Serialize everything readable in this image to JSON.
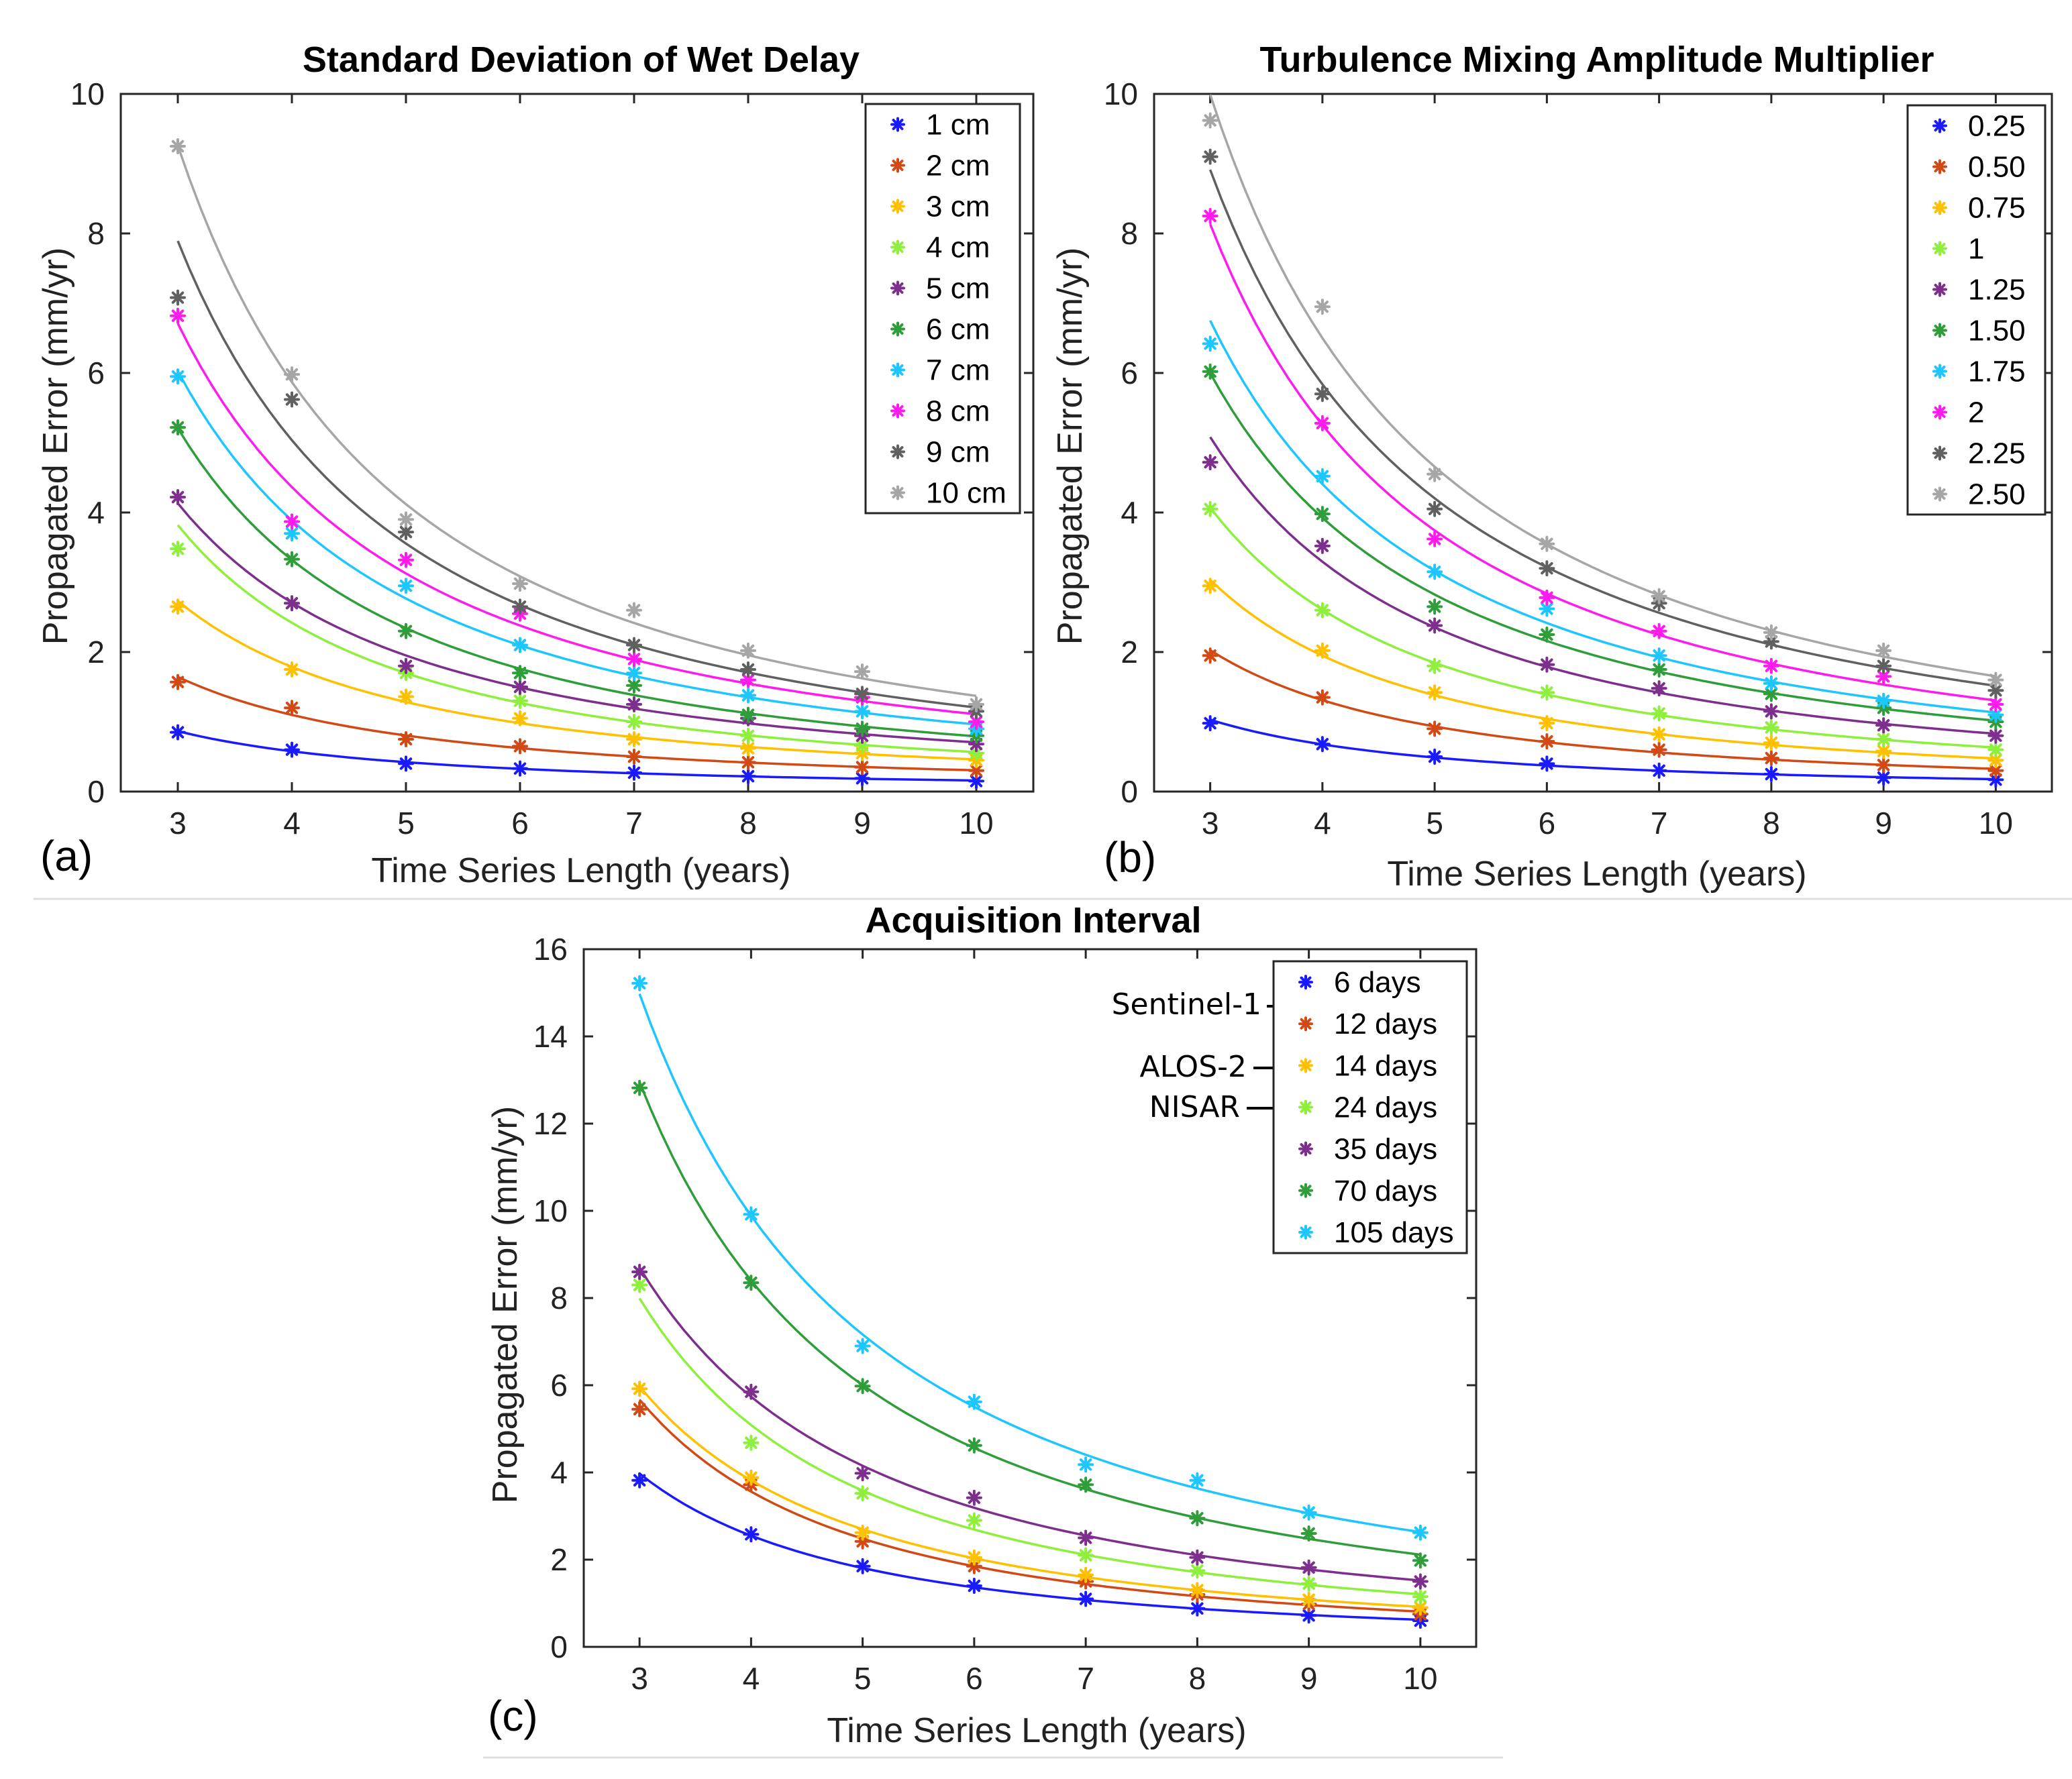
{
  "chart_data": [
    {
      "panel": "(a)",
      "type": "scatter",
      "title": "Standard Deviation of Wet Delay",
      "xlabel": "Time Series Length (years)",
      "ylabel": "Propagated Error (mm/yr)",
      "xlim": [
        2.5,
        10.5
      ],
      "ylim": [
        0,
        10
      ],
      "xticks": [
        "3",
        "4",
        "5",
        "6",
        "7",
        "8",
        "9",
        "10"
      ],
      "yticks": [
        "0",
        "2",
        "4",
        "6",
        "8",
        "10"
      ],
      "x": [
        3,
        4,
        5,
        6,
        7,
        8,
        9,
        10
      ],
      "legend_position": "top-right",
      "series": [
        {
          "name": "1 cm",
          "color": "#1a1aff",
          "values": [
            0.85,
            0.6,
            0.4,
            0.33,
            0.27,
            0.22,
            0.19,
            0.15
          ]
        },
        {
          "name": "2 cm",
          "color": "#d14a16",
          "values": [
            1.57,
            1.2,
            0.75,
            0.65,
            0.5,
            0.42,
            0.35,
            0.3
          ]
        },
        {
          "name": "3 cm",
          "color": "#ffc000",
          "values": [
            2.65,
            1.75,
            1.36,
            1.05,
            0.75,
            0.62,
            0.55,
            0.45
          ]
        },
        {
          "name": "4 cm",
          "color": "#8eef3c",
          "values": [
            3.48,
            2.7,
            1.7,
            1.3,
            1.0,
            0.8,
            0.66,
            0.55
          ]
        },
        {
          "name": "5 cm",
          "color": "#7e2f8e",
          "values": [
            4.22,
            2.7,
            1.8,
            1.5,
            1.25,
            1.05,
            0.8,
            0.68
          ]
        },
        {
          "name": "6 cm",
          "color": "#2e9d3a",
          "values": [
            5.22,
            3.33,
            2.3,
            1.7,
            1.52,
            1.1,
            0.9,
            0.8
          ]
        },
        {
          "name": "7 cm",
          "color": "#1ec6ff",
          "values": [
            5.95,
            3.7,
            2.95,
            2.1,
            1.7,
            1.38,
            1.15,
            0.9
          ]
        },
        {
          "name": "8 cm",
          "color": "#ff1aee",
          "values": [
            6.82,
            3.87,
            3.32,
            2.55,
            1.9,
            1.6,
            1.35,
            1.0
          ]
        },
        {
          "name": "9 cm",
          "color": "#606060",
          "values": [
            7.08,
            5.62,
            3.72,
            2.65,
            2.1,
            1.75,
            1.4,
            1.15
          ]
        },
        {
          "name": "10 cm",
          "color": "#a6a6a6",
          "values": [
            9.25,
            5.98,
            3.9,
            2.98,
            2.6,
            2.02,
            1.72,
            1.25
          ]
        }
      ]
    },
    {
      "panel": "(b)",
      "type": "scatter",
      "title": "Turbulence Mixing Amplitude Multiplier",
      "xlabel": "Time Series Length (years)",
      "ylabel": "Propagated Error (mm/yr)",
      "xlim": [
        2.5,
        10.5
      ],
      "ylim": [
        0,
        10
      ],
      "xticks": [
        "3",
        "4",
        "5",
        "6",
        "7",
        "8",
        "9",
        "10"
      ],
      "yticks": [
        "0",
        "2",
        "4",
        "6",
        "8",
        "10"
      ],
      "x": [
        3,
        4,
        5,
        6,
        7,
        8,
        9,
        10
      ],
      "legend_position": "top-right",
      "series": [
        {
          "name": "0.25",
          "color": "#1a1aff",
          "values": [
            0.98,
            0.68,
            0.5,
            0.4,
            0.3,
            0.25,
            0.2,
            0.17
          ]
        },
        {
          "name": "0.50",
          "color": "#d14a16",
          "values": [
            1.95,
            1.35,
            0.9,
            0.72,
            0.6,
            0.48,
            0.38,
            0.3
          ]
        },
        {
          "name": "0.75",
          "color": "#ffc000",
          "values": [
            2.95,
            2.02,
            1.42,
            0.98,
            0.82,
            0.7,
            0.58,
            0.45
          ]
        },
        {
          "name": "1",
          "color": "#8eef3c",
          "values": [
            4.05,
            2.6,
            1.8,
            1.42,
            1.12,
            0.92,
            0.75,
            0.6
          ]
        },
        {
          "name": "1.25",
          "color": "#7e2f8e",
          "values": [
            4.72,
            3.52,
            2.38,
            1.82,
            1.48,
            1.15,
            0.95,
            0.8
          ]
        },
        {
          "name": "1.50",
          "color": "#2e9d3a",
          "values": [
            6.02,
            3.98,
            2.65,
            2.25,
            1.75,
            1.4,
            1.2,
            1.0
          ]
        },
        {
          "name": "1.75",
          "color": "#1ec6ff",
          "values": [
            6.42,
            4.52,
            3.15,
            2.62,
            1.95,
            1.55,
            1.3,
            1.1
          ]
        },
        {
          "name": "2",
          "color": "#ff1aee",
          "values": [
            8.25,
            5.28,
            3.62,
            2.78,
            2.3,
            1.8,
            1.65,
            1.25
          ]
        },
        {
          "name": "2.25",
          "color": "#606060",
          "values": [
            9.1,
            5.7,
            4.05,
            3.2,
            2.7,
            2.15,
            1.8,
            1.45
          ]
        },
        {
          "name": "2.50",
          "color": "#a6a6a6",
          "values": [
            9.62,
            6.95,
            4.55,
            3.55,
            2.8,
            2.28,
            2.02,
            1.6
          ]
        }
      ]
    },
    {
      "panel": "(c)",
      "type": "scatter",
      "title": "Acquisition Interval",
      "xlabel": "Time Series Length (years)",
      "ylabel": "Propagated Error (mm/yr)",
      "xlim": [
        2.5,
        10.5
      ],
      "ylim": [
        0,
        16
      ],
      "xticks": [
        "3",
        "4",
        "5",
        "6",
        "7",
        "8",
        "9",
        "10"
      ],
      "yticks": [
        "0",
        "2",
        "4",
        "6",
        "8",
        "10",
        "12",
        "14",
        "16"
      ],
      "x": [
        3,
        4,
        5,
        6,
        7,
        8,
        9,
        10
      ],
      "legend_position": "top-right",
      "annotations": [
        "Sentinel-1",
        "ALOS-2",
        "NISAR"
      ],
      "series": [
        {
          "name": "6 days",
          "color": "#1a1aff",
          "values": [
            3.82,
            2.58,
            1.85,
            1.4,
            1.1,
            0.88,
            0.72,
            0.6
          ]
        },
        {
          "name": "12 days",
          "color": "#d14a16",
          "values": [
            5.45,
            3.72,
            2.42,
            1.85,
            1.5,
            1.2,
            0.98,
            0.75
          ]
        },
        {
          "name": "14 days",
          "color": "#ffc000",
          "values": [
            5.92,
            3.88,
            2.62,
            2.05,
            1.65,
            1.3,
            1.08,
            0.9
          ]
        },
        {
          "name": "24 days",
          "color": "#8eef3c",
          "values": [
            8.3,
            4.68,
            3.52,
            2.9,
            2.1,
            1.75,
            1.45,
            1.15
          ]
        },
        {
          "name": "35 days",
          "color": "#7e2f8e",
          "values": [
            8.6,
            5.85,
            3.98,
            3.42,
            2.5,
            2.05,
            1.82,
            1.5
          ]
        },
        {
          "name": "70 days",
          "color": "#2e9d3a",
          "values": [
            12.82,
            8.35,
            5.98,
            4.62,
            3.72,
            2.95,
            2.6,
            1.98
          ]
        },
        {
          "name": "105 days",
          "color": "#1ec6ff",
          "values": [
            15.22,
            9.92,
            6.9,
            5.62,
            4.18,
            3.82,
            3.08,
            2.62
          ]
        }
      ]
    }
  ]
}
